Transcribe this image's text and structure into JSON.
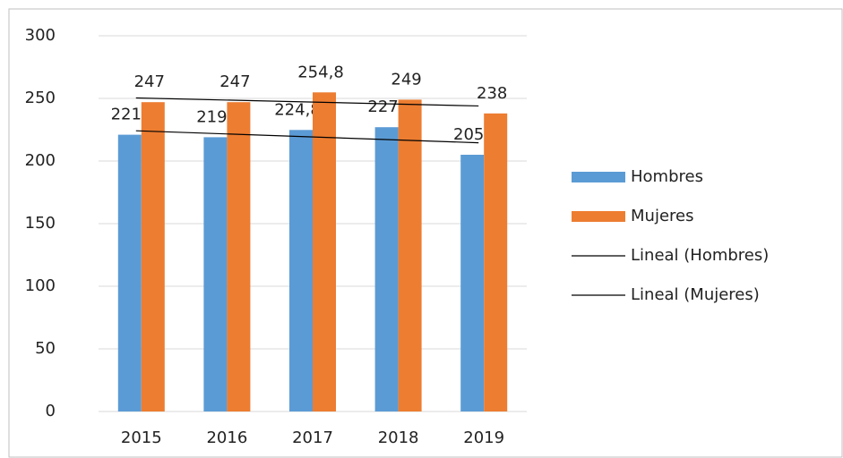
{
  "chart_data": {
    "type": "bar",
    "categories": [
      "2015",
      "2016",
      "2017",
      "2018",
      "2019"
    ],
    "series": [
      {
        "name": "Hombres",
        "color": "#5b9bd5",
        "values": [
          221,
          219,
          224.8,
          227,
          205
        ],
        "value_labels": [
          "221",
          "219",
          "224,8",
          "227",
          "205"
        ],
        "trendline": {
          "name": "Lineal (Hombres)",
          "color": "#000000"
        }
      },
      {
        "name": "Mujeres",
        "color": "#ed7d31",
        "values": [
          247,
          247,
          254.8,
          249,
          238
        ],
        "value_labels": [
          "247",
          "247",
          "254,8",
          "249",
          "238"
        ],
        "trendline": {
          "name": "Lineal (Mujeres)",
          "color": "#000000"
        }
      }
    ],
    "ylim": [
      0,
      300
    ],
    "yticks": [
      0,
      50,
      100,
      150,
      200,
      250,
      300
    ],
    "grid": true,
    "legend": "right"
  }
}
